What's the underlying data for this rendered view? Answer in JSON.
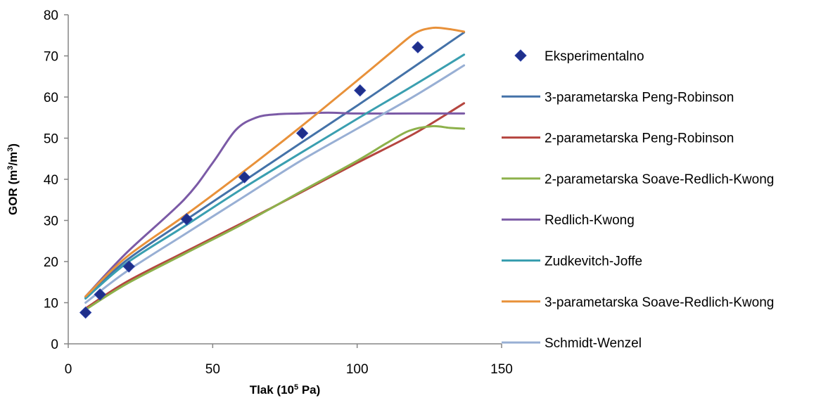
{
  "chart_data": {
    "type": "line",
    "title": "",
    "xlabel": {
      "main": "Tlak (10",
      "sup": "5",
      "tail": " Pa)"
    },
    "ylabel": {
      "main": "GOR (m",
      "sup1": "3",
      "mid": "/m",
      "sup2": "3",
      "tail": ")"
    },
    "xlim": [
      0,
      150
    ],
    "ylim": [
      0,
      80
    ],
    "xticks": [
      0,
      50,
      100,
      150
    ],
    "yticks": [
      0,
      10,
      20,
      30,
      40,
      50,
      60,
      70,
      80
    ],
    "grid": false,
    "legend_position": "right",
    "series": [
      {
        "name": "Eksperimentalno",
        "kind": "scatter",
        "color": "#1f2f8a",
        "x": [
          6,
          11,
          21,
          41,
          61,
          81,
          101,
          121
        ],
        "y": [
          7.6,
          12,
          18.8,
          30.3,
          40.5,
          51.2,
          61.6,
          72.1
        ]
      },
      {
        "name": "3-parametarska Peng-Robinson",
        "kind": "line",
        "color": "#4472a8",
        "x": [
          6,
          20,
          40,
          60,
          80,
          100,
          120,
          137
        ],
        "y": [
          11.2,
          20.2,
          29.8,
          39.2,
          48.6,
          57.9,
          67.5,
          75.7
        ]
      },
      {
        "name": "2-parametarska Peng-Robinson",
        "kind": "line",
        "color": "#b5453f",
        "x": [
          6,
          20,
          40,
          60,
          80,
          100,
          120,
          137
        ],
        "y": [
          8.6,
          15.0,
          22.2,
          29.3,
          36.6,
          44.0,
          51.2,
          58.5
        ]
      },
      {
        "name": "2-parametarska Soave-Redlich-Kwong",
        "kind": "line",
        "color": "#8db14b",
        "x": [
          6,
          20,
          40,
          60,
          80,
          100,
          110,
          118,
          126,
          132,
          137
        ],
        "y": [
          8.3,
          14.5,
          21.8,
          29.0,
          36.8,
          44.5,
          48.7,
          51.8,
          52.9,
          52.5,
          52.3
        ]
      },
      {
        "name": "Redlich-Kwong",
        "kind": "line",
        "color": "#7b5aa6",
        "x": [
          6,
          20,
          40,
          50,
          58,
          65,
          72,
          80,
          90,
          100,
          120,
          137
        ],
        "y": [
          11.5,
          22.0,
          35.0,
          44.0,
          52.0,
          55.0,
          55.8,
          56.0,
          56.2,
          56.0,
          56.0,
          56.0
        ]
      },
      {
        "name": "Zudkevitch-Joffe",
        "kind": "line",
        "color": "#3a9fb0",
        "x": [
          6,
          20,
          40,
          60,
          80,
          100,
          120,
          137
        ],
        "y": [
          11.0,
          19.5,
          28.5,
          37.6,
          46.2,
          54.7,
          63.0,
          70.3
        ]
      },
      {
        "name": "3-parametarska Soave-Redlich-Kwong",
        "kind": "line",
        "color": "#e8913a",
        "x": [
          6,
          20,
          40,
          60,
          80,
          100,
          112,
          120,
          126,
          131,
          137
        ],
        "y": [
          11.5,
          21.0,
          31.0,
          41.5,
          52.5,
          64.0,
          71.0,
          75.5,
          76.8,
          76.6,
          75.9
        ]
      },
      {
        "name": "Schmidt-Wenzel",
        "kind": "line",
        "color": "#98afd4",
        "x": [
          6,
          20,
          40,
          60,
          80,
          100,
          120,
          137
        ],
        "y": [
          10.0,
          17.5,
          26.5,
          35.4,
          44.3,
          52.3,
          60.3,
          67.7
        ]
      }
    ]
  }
}
